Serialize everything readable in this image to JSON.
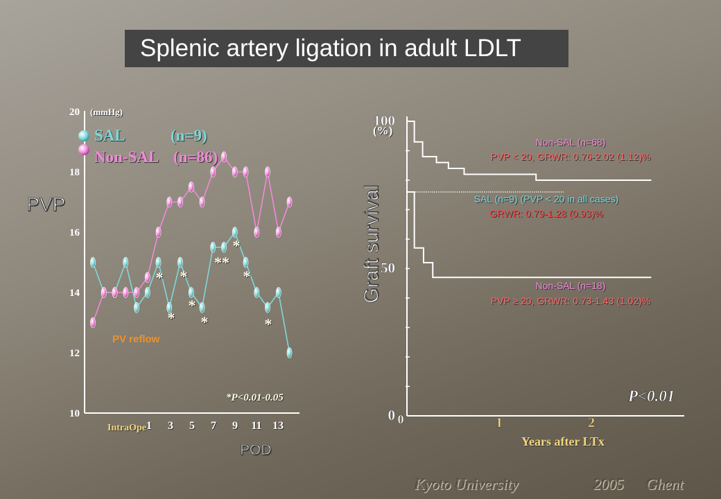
{
  "title": "Splenic artery ligation in adult LDLT",
  "footer": {
    "institution": "Kyoto University",
    "year": "2005",
    "city": "Ghent"
  },
  "colors": {
    "sal": "#7fd8d8",
    "non_sal": "#f08ad8",
    "sig": "#fffbe8",
    "reflow": "#f0902a",
    "title_bg": "#444444"
  },
  "chart_data": [
    {
      "type": "line",
      "ylabel": "PVP",
      "unit": "(mmHg)",
      "xlabel": "POD",
      "ylim": [
        10,
        20
      ],
      "yticks": [
        10,
        12,
        14,
        16,
        18,
        20
      ],
      "xtick_labels": [
        "IntraOpe",
        "1",
        "3",
        "5",
        "7",
        "9",
        "11",
        "13"
      ],
      "x": [
        "IntraOpe",
        "0",
        "1",
        "2",
        "3",
        "4",
        "5",
        "6",
        "7",
        "8",
        "9",
        "10",
        "11",
        "12",
        "13",
        "14",
        "15",
        "16",
        "17"
      ],
      "legend": [
        {
          "name": "SAL",
          "n": "(n=9)"
        },
        {
          "name": "Non-SAL",
          "n": "(n=86)"
        }
      ],
      "series": [
        {
          "name": "SAL",
          "values": [
            15,
            14,
            14,
            15,
            13.5,
            14,
            15,
            13.5,
            15,
            14,
            13.5,
            15.5,
            15.5,
            16,
            15,
            14,
            13.5,
            14,
            12
          ]
        },
        {
          "name": "Non-SAL",
          "values": [
            13,
            14,
            14,
            14,
            14,
            14.5,
            16,
            17,
            17,
            17.5,
            17,
            18,
            18.5,
            18,
            18,
            16,
            18,
            16,
            17
          ]
        }
      ],
      "significance": [
        "*",
        "*",
        "*",
        "*",
        "*",
        "**",
        "*",
        "*",
        "*"
      ],
      "annotations": {
        "reflow": "PV reflow",
        "pvalue": "*P<0.01-0.05"
      }
    },
    {
      "type": "line",
      "subtype": "kaplan-meier",
      "ylabel": "Graft survival",
      "unit": "(%)",
      "xlabel": "Years after LTx",
      "ylim": [
        0,
        100
      ],
      "yticks": [
        "0",
        "50",
        "100"
      ],
      "xlim": [
        0,
        3
      ],
      "xtick_labels": [
        "0",
        "1",
        "2"
      ],
      "series": [
        {
          "name": "Non-SAL (n=68)",
          "detail": "PVP < 20, GRWR: 0.76-2.02 (1.12)%",
          "x": [
            0,
            0.08,
            0.17,
            0.32,
            0.45,
            0.62,
            1.4,
            2.65
          ],
          "y": [
            100,
            93,
            88,
            86,
            84,
            82,
            80,
            80
          ]
        },
        {
          "name": "SAL (n=9)",
          "detail1": "SAL (n=9) (PVP < 20 in all cases)",
          "detail2": "GRWR: 0.79-1.28 (0.93)%",
          "x": [
            0,
            1.7
          ],
          "y": [
            76,
            76
          ]
        },
        {
          "name": "Non-SAL (n=18)",
          "detail": "PVP ≥ 20, GRWR: 0.73-1.43 (1.02)%",
          "x": [
            0,
            0.08,
            0.18,
            0.28,
            2.65
          ],
          "y": [
            76,
            57,
            52,
            47,
            47
          ]
        }
      ],
      "pvalue": "P<0.01"
    }
  ]
}
